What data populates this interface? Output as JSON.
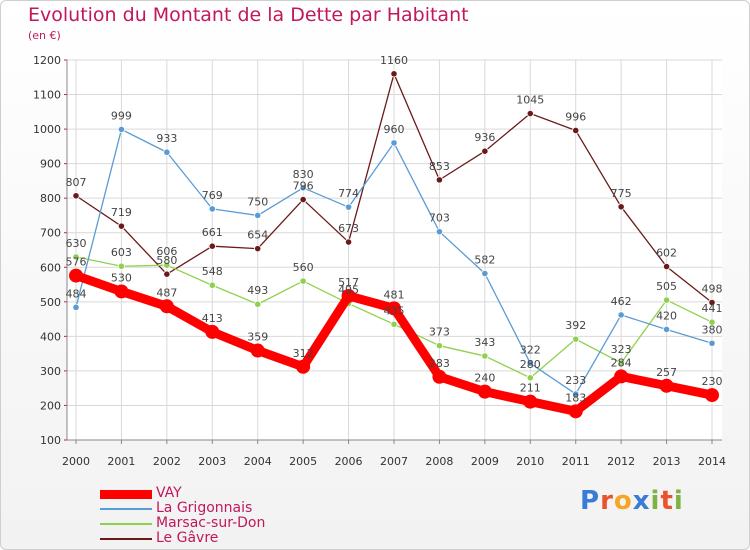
{
  "header": {
    "title": "Evolution du Montant de la Dette par Habitant",
    "subtitle": "(en €)"
  },
  "logo": {
    "letters": [
      "P",
      "r",
      "o",
      "x",
      "i",
      "t",
      "i"
    ],
    "colors": [
      "#3a7bd5",
      "#e8542b",
      "#f5a623",
      "#3a7bd5",
      "#7cb342",
      "#e8542b",
      "#7cb342"
    ]
  },
  "chart_data": {
    "type": "line",
    "x": [
      "2000",
      "2001",
      "2002",
      "2003",
      "2004",
      "2005",
      "2006",
      "2007",
      "2008",
      "2009",
      "2010",
      "2011",
      "2012",
      "2013",
      "2014"
    ],
    "ylim": [
      100,
      1200
    ],
    "yticks": [
      "100",
      "200",
      "300",
      "400",
      "500",
      "600",
      "700",
      "800",
      "900",
      "1000",
      "1100",
      "1200"
    ],
    "grid": true,
    "legend_position": "bottom-left",
    "series": [
      {
        "name": "VAY",
        "color": "#ff0000",
        "values": [
          576,
          530,
          487,
          413,
          359,
          312,
          517,
          481,
          283,
          240,
          211,
          183,
          284,
          257,
          230
        ],
        "labels": [
          "576",
          "530",
          "487",
          "413",
          "359",
          "312",
          "517",
          "481",
          "283",
          "240",
          "211",
          "183",
          "284",
          "257",
          "230"
        ]
      },
      {
        "name": "La Grigonnais",
        "color": "#5b9bd5",
        "values": [
          484,
          999,
          933,
          769,
          750,
          830,
          774,
          960,
          703,
          582,
          322,
          233,
          462,
          420,
          380
        ],
        "labels": [
          "484",
          "999",
          "933",
          "769",
          "750",
          "830",
          "774",
          "960",
          "703",
          "582",
          "322",
          "233",
          "462",
          "420",
          "380"
        ]
      },
      {
        "name": "Marsac-sur-Don",
        "color": "#8fd14f",
        "values": [
          630,
          603,
          606,
          548,
          493,
          560,
          495,
          435,
          373,
          343,
          280,
          392,
          323,
          505,
          441
        ],
        "labels": [
          "630",
          "603",
          "606",
          "548",
          "493",
          "560",
          "495",
          "435",
          "373",
          "343",
          "280",
          "392",
          "323",
          "505",
          "441"
        ]
      },
      {
        "name": "Le Gâvre",
        "color": "#6b1a1a",
        "values": [
          807,
          719,
          580,
          661,
          654,
          796,
          673,
          1160,
          853,
          936,
          1045,
          996,
          775,
          602,
          498
        ],
        "labels": [
          "807",
          "719",
          "580",
          "661",
          "654",
          "796",
          "673",
          "1160",
          "853",
          "936",
          "1045",
          "996",
          "775",
          "602",
          "498"
        ]
      }
    ]
  }
}
